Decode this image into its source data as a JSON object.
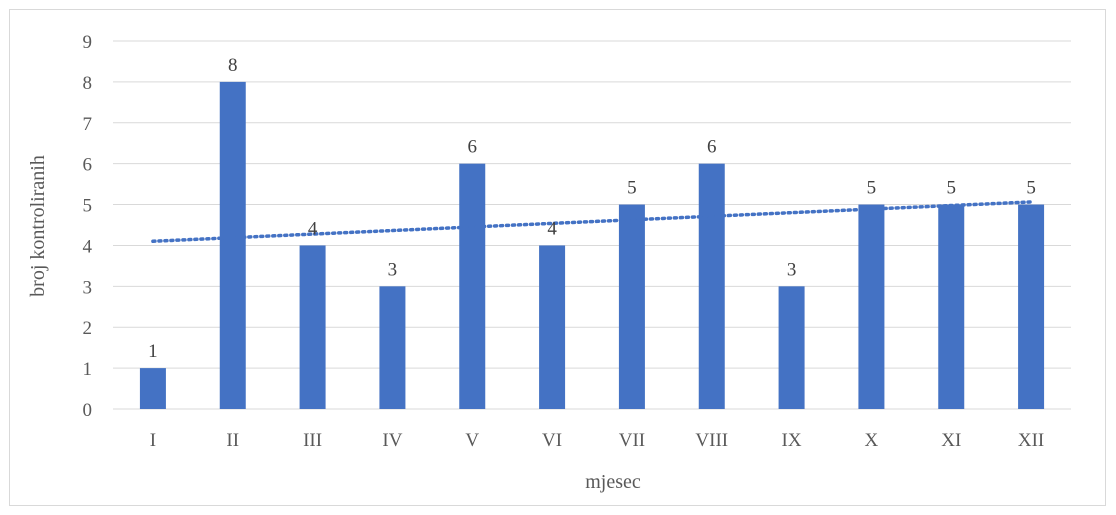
{
  "chart_data": {
    "type": "bar",
    "categories": [
      "I",
      "II",
      "III",
      "IV",
      "V",
      "VI",
      "VII",
      "VIII",
      "IX",
      "X",
      "XI",
      "XII"
    ],
    "values": [
      1,
      8,
      4,
      3,
      6,
      4,
      5,
      6,
      3,
      5,
      5,
      5
    ],
    "data_labels": [
      "1",
      "8",
      "4",
      "3",
      "6",
      "4",
      "5",
      "6",
      "3",
      "5",
      "5",
      "5"
    ],
    "xlabel": "mjesec",
    "ylabel": "broj kontroliranih",
    "ylim": [
      0,
      9
    ],
    "yticks": [
      0,
      1,
      2,
      3,
      4,
      5,
      6,
      7,
      8,
      9
    ],
    "grid": true,
    "trendline": {
      "type": "linear",
      "style": "dotted"
    },
    "colors": {
      "bar": "#4472c4",
      "trendline": "#4472c4",
      "grid": "#d9d9d9"
    }
  }
}
